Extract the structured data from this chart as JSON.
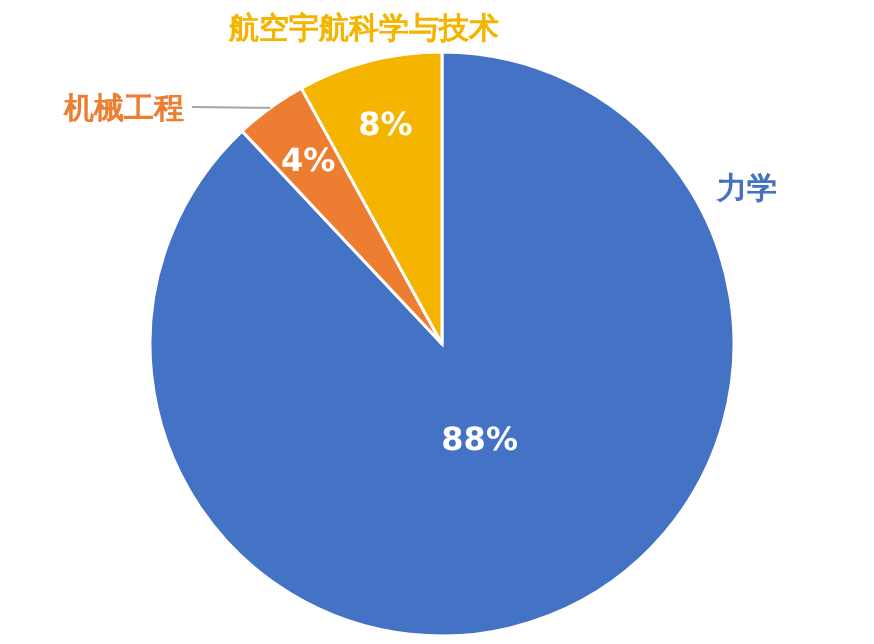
{
  "chart_data": {
    "type": "pie",
    "categories": [
      "力学",
      "机械工程",
      "航空宇航科学与技术"
    ],
    "values": [
      88,
      4,
      8
    ],
    "colors": [
      "#4472c4",
      "#ed7d31",
      "#f4b400"
    ],
    "value_labels": [
      "88%",
      "4%",
      "8%"
    ]
  }
}
